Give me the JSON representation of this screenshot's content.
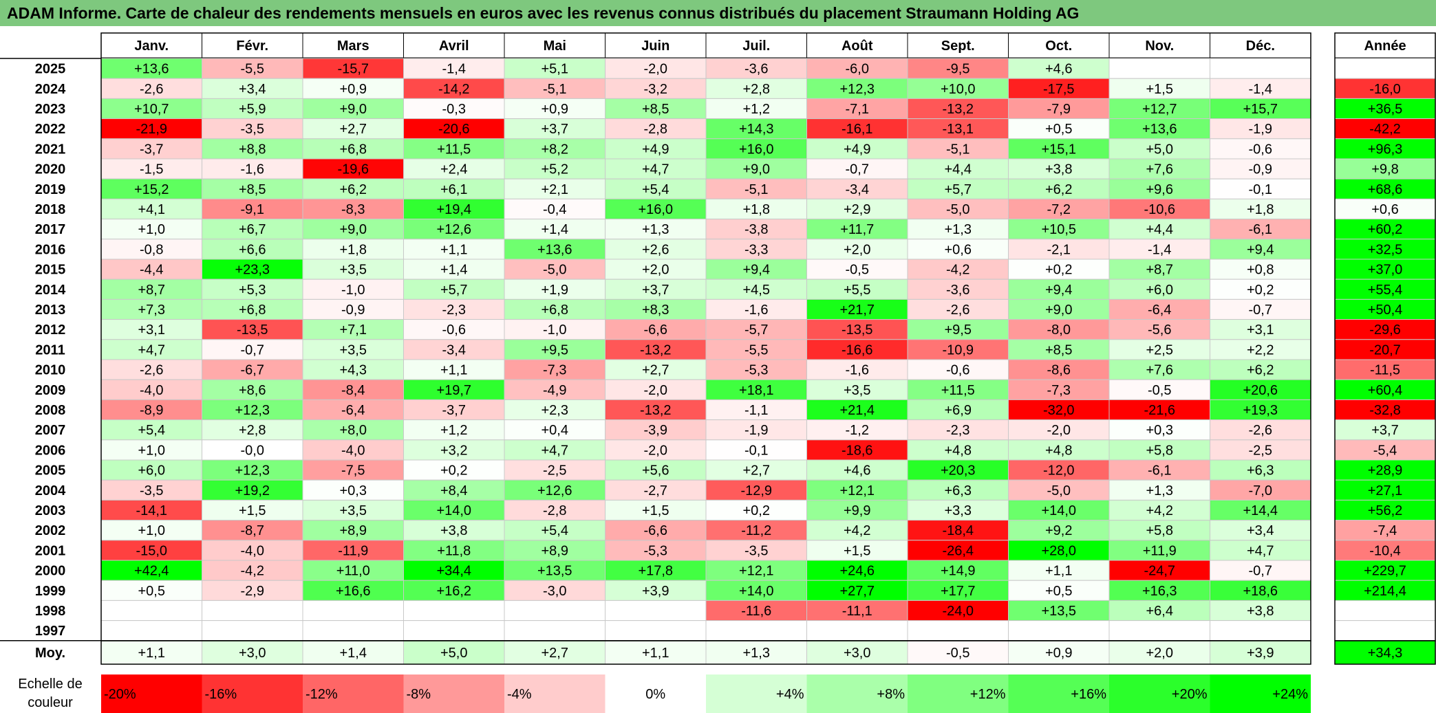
{
  "title": "ADAM Informe. Carte de chaleur des rendements mensuels en euros avec les revenus connus distribués du placement Straumann Holding AG",
  "chart_data": {
    "type": "heatmap",
    "title": "ADAM Informe. Carte de chaleur des rendements mensuels en euros avec les revenus connus distribués du placement Straumann Holding AG",
    "months": [
      "Janv.",
      "Févr.",
      "Mars",
      "Avril",
      "Mai",
      "Juin",
      "Juil.",
      "Août",
      "Sept.",
      "Oct.",
      "Nov.",
      "Déc."
    ],
    "year_header": "Année",
    "rows": [
      {
        "year": "2025",
        "values": [
          "+13,6",
          "-5,5",
          "-15,7",
          "-1,4",
          "+5,1",
          "-2,0",
          "-3,6",
          "-6,0",
          "-9,5",
          "+4,6",
          "",
          ""
        ],
        "annual": ""
      },
      {
        "year": "2024",
        "values": [
          "-2,6",
          "+3,4",
          "+0,9",
          "-14,2",
          "-5,1",
          "-3,2",
          "+2,8",
          "+12,3",
          "+10,0",
          "-17,5",
          "+1,5",
          "-1,4"
        ],
        "annual": "-16,0"
      },
      {
        "year": "2023",
        "values": [
          "+10,7",
          "+5,9",
          "+9,0",
          "-0,3",
          "+0,9",
          "+8,5",
          "+1,2",
          "-7,1",
          "-13,2",
          "-7,9",
          "+12,7",
          "+15,7"
        ],
        "annual": "+36,5"
      },
      {
        "year": "2022",
        "values": [
          "-21,9",
          "-3,5",
          "+2,7",
          "-20,6",
          "+3,7",
          "-2,8",
          "+14,3",
          "-16,1",
          "-13,1",
          "+0,5",
          "+13,6",
          "-1,9"
        ],
        "annual": "-42,2"
      },
      {
        "year": "2021",
        "values": [
          "-3,7",
          "+8,8",
          "+6,8",
          "+11,5",
          "+8,2",
          "+4,9",
          "+16,0",
          "+4,9",
          "-5,1",
          "+15,1",
          "+5,0",
          "-0,6"
        ],
        "annual": "+96,3"
      },
      {
        "year": "2020",
        "values": [
          "-1,5",
          "-1,6",
          "-19,6",
          "+2,4",
          "+5,2",
          "+4,7",
          "+9,0",
          "-0,7",
          "+4,4",
          "+3,8",
          "+7,6",
          "-0,9"
        ],
        "annual": "+9,8"
      },
      {
        "year": "2019",
        "values": [
          "+15,2",
          "+8,5",
          "+6,2",
          "+6,1",
          "+2,1",
          "+5,4",
          "-5,1",
          "-3,4",
          "+5,7",
          "+6,2",
          "+9,6",
          "-0,1"
        ],
        "annual": "+68,6"
      },
      {
        "year": "2018",
        "values": [
          "+4,1",
          "-9,1",
          "-8,3",
          "+19,4",
          "-0,4",
          "+16,0",
          "+1,8",
          "+2,9",
          "-5,0",
          "-7,2",
          "-10,6",
          "+1,8"
        ],
        "annual": "+0,6"
      },
      {
        "year": "2017",
        "values": [
          "+1,0",
          "+6,7",
          "+9,0",
          "+12,6",
          "+1,4",
          "+1,3",
          "-3,8",
          "+11,7",
          "+1,3",
          "+10,5",
          "+4,4",
          "-6,1"
        ],
        "annual": "+60,2"
      },
      {
        "year": "2016",
        "values": [
          "-0,8",
          "+6,6",
          "+1,8",
          "+1,1",
          "+13,6",
          "+2,6",
          "-3,3",
          "+2,0",
          "+0,6",
          "-2,1",
          "-1,4",
          "+9,4"
        ],
        "annual": "+32,5"
      },
      {
        "year": "2015",
        "values": [
          "-4,4",
          "+23,3",
          "+3,5",
          "+1,4",
          "-5,0",
          "+2,0",
          "+9,4",
          "-0,5",
          "-4,2",
          "+0,2",
          "+8,7",
          "+0,8"
        ],
        "annual": "+37,0"
      },
      {
        "year": "2014",
        "values": [
          "+8,7",
          "+5,3",
          "-1,0",
          "+5,7",
          "+1,9",
          "+3,7",
          "+4,5",
          "+5,5",
          "-3,6",
          "+9,4",
          "+6,0",
          "+0,2"
        ],
        "annual": "+55,4"
      },
      {
        "year": "2013",
        "values": [
          "+7,3",
          "+6,8",
          "-0,9",
          "-2,3",
          "+6,8",
          "+8,3",
          "-1,6",
          "+21,7",
          "-2,6",
          "+9,0",
          "-6,4",
          "-0,7"
        ],
        "annual": "+50,4"
      },
      {
        "year": "2012",
        "values": [
          "+3,1",
          "-13,5",
          "+7,1",
          "-0,6",
          "-1,0",
          "-6,6",
          "-5,7",
          "-13,5",
          "+9,5",
          "-8,0",
          "-5,6",
          "+3,1"
        ],
        "annual": "-29,6"
      },
      {
        "year": "2011",
        "values": [
          "+4,7",
          "-0,7",
          "+3,5",
          "-3,4",
          "+9,5",
          "-13,2",
          "-5,5",
          "-16,6",
          "-10,9",
          "+8,5",
          "+2,5",
          "+2,2"
        ],
        "annual": "-20,7"
      },
      {
        "year": "2010",
        "values": [
          "-2,6",
          "-6,7",
          "+4,3",
          "+1,1",
          "-7,3",
          "+2,7",
          "-5,3",
          "-1,6",
          "-0,6",
          "-8,6",
          "+7,6",
          "+6,2"
        ],
        "annual": "-11,5"
      },
      {
        "year": "2009",
        "values": [
          "-4,0",
          "+8,6",
          "-8,4",
          "+19,7",
          "-4,9",
          "-2,0",
          "+18,1",
          "+3,5",
          "+11,5",
          "-7,3",
          "-0,5",
          "+20,6"
        ],
        "annual": "+60,4"
      },
      {
        "year": "2008",
        "values": [
          "-8,9",
          "+12,3",
          "-6,4",
          "-3,7",
          "+2,3",
          "-13,2",
          "-1,1",
          "+21,4",
          "+6,9",
          "-32,0",
          "-21,6",
          "+19,3"
        ],
        "annual": "-32,8"
      },
      {
        "year": "2007",
        "values": [
          "+5,4",
          "+2,8",
          "+8,0",
          "+1,2",
          "+0,4",
          "-3,9",
          "-1,9",
          "-1,2",
          "-2,3",
          "-2,0",
          "+0,3",
          "-2,6"
        ],
        "annual": "+3,7"
      },
      {
        "year": "2006",
        "values": [
          "+1,0",
          "-0,0",
          "-4,0",
          "+3,2",
          "+4,7",
          "-2,0",
          "-0,1",
          "-18,6",
          "+4,8",
          "+4,8",
          "+5,8",
          "-2,5"
        ],
        "annual": "-5,4"
      },
      {
        "year": "2005",
        "values": [
          "+6,0",
          "+12,3",
          "-7,5",
          "+0,2",
          "-2,5",
          "+5,6",
          "+2,7",
          "+4,6",
          "+20,3",
          "-12,0",
          "-6,1",
          "+6,3"
        ],
        "annual": "+28,9"
      },
      {
        "year": "2004",
        "values": [
          "-3,5",
          "+19,2",
          "+0,3",
          "+8,4",
          "+12,6",
          "-2,7",
          "-12,9",
          "+12,1",
          "+6,3",
          "-5,0",
          "+1,3",
          "-7,0"
        ],
        "annual": "+27,1"
      },
      {
        "year": "2003",
        "values": [
          "-14,1",
          "+1,5",
          "+3,5",
          "+14,0",
          "-2,8",
          "+1,5",
          "+0,2",
          "+9,9",
          "+3,3",
          "+14,0",
          "+4,2",
          "+14,4"
        ],
        "annual": "+56,2"
      },
      {
        "year": "2002",
        "values": [
          "+1,0",
          "-8,7",
          "+8,9",
          "+3,8",
          "+5,4",
          "-6,6",
          "-11,2",
          "+4,2",
          "-18,4",
          "+9,2",
          "+5,8",
          "+3,4"
        ],
        "annual": "-7,4"
      },
      {
        "year": "2001",
        "values": [
          "-15,0",
          "-4,0",
          "-11,9",
          "+11,8",
          "+8,9",
          "-5,3",
          "-3,5",
          "+1,5",
          "-26,4",
          "+28,0",
          "+11,9",
          "+4,7"
        ],
        "annual": "-10,4"
      },
      {
        "year": "2000",
        "values": [
          "+42,4",
          "-4,2",
          "+11,0",
          "+34,4",
          "+13,5",
          "+17,8",
          "+12,1",
          "+24,6",
          "+14,9",
          "+1,1",
          "-24,7",
          "-0,7"
        ],
        "annual": "+229,7"
      },
      {
        "year": "1999",
        "values": [
          "+0,5",
          "-2,9",
          "+16,6",
          "+16,2",
          "-3,0",
          "+3,9",
          "+14,0",
          "+27,7",
          "+17,7",
          "+0,5",
          "+16,3",
          "+18,6"
        ],
        "annual": "+214,4"
      },
      {
        "year": "1998",
        "values": [
          "",
          "",
          "",
          "",
          "",
          "",
          "-11,6",
          "-11,1",
          "-24,0",
          "+13,5",
          "+6,4",
          "+3,8"
        ],
        "annual": ""
      },
      {
        "year": "1997",
        "values": [
          "",
          "",
          "",
          "",
          "",
          "",
          "",
          "",
          "",
          "",
          "",
          ""
        ],
        "annual": ""
      }
    ],
    "average": {
      "label": "Moy.",
      "values": [
        "+1,1",
        "+3,0",
        "+1,4",
        "+5,0",
        "+2,7",
        "+1,1",
        "+1,3",
        "+3,0",
        "-0,5",
        "+0,9",
        "+2,0",
        "+3,9"
      ],
      "annual": "+34,3"
    },
    "scale": {
      "label_line1": "Echelle de",
      "label_line2": "couleur",
      "stops": [
        {
          "label": "-20%",
          "value": -20
        },
        {
          "label": "-16%",
          "value": -16
        },
        {
          "label": "-12%",
          "value": -12
        },
        {
          "label": "-8%",
          "value": -8
        },
        {
          "label": "-4%",
          "value": -4
        },
        {
          "label": "0%",
          "value": 0
        },
        {
          "label": "+4%",
          "value": 4
        },
        {
          "label": "+8%",
          "value": 8
        },
        {
          "label": "+12%",
          "value": 12
        },
        {
          "label": "+16%",
          "value": 16
        },
        {
          "label": "+20%",
          "value": 20
        },
        {
          "label": "+24%",
          "value": 24
        }
      ]
    },
    "colors": {
      "negative_max": "#ff0000",
      "zero": "#ffffff",
      "positive_max": "#00ff00",
      "title_bar": "#7ec87e"
    }
  }
}
